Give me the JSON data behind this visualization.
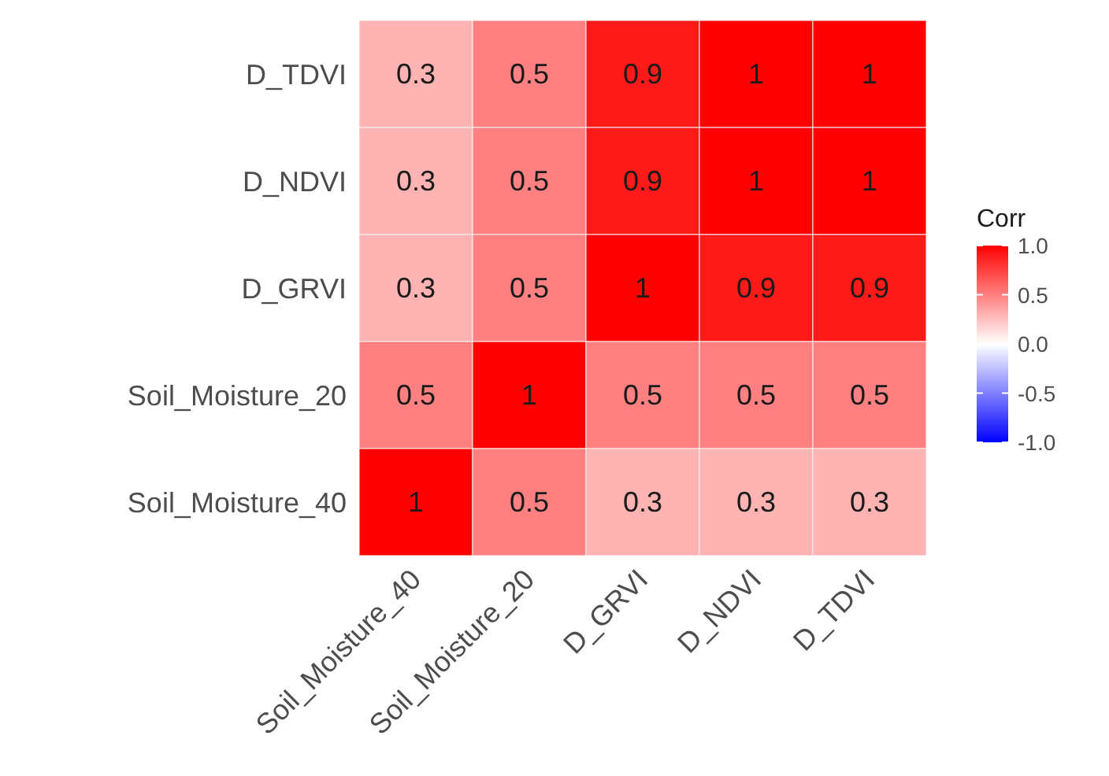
{
  "chart_data": {
    "type": "heatmap",
    "categories": [
      "Soil_Moisture_40",
      "Soil_Moisture_20",
      "D_GRVI",
      "D_NDVI",
      "D_TDVI"
    ],
    "y_categories": [
      "D_TDVI",
      "D_NDVI",
      "D_GRVI",
      "Soil_Moisture_20",
      "Soil_Moisture_40"
    ],
    "cells": [
      [
        0.3,
        0.5,
        0.9,
        1,
        1
      ],
      [
        0.3,
        0.5,
        0.9,
        1,
        1
      ],
      [
        0.3,
        0.5,
        1,
        0.9,
        0.9
      ],
      [
        0.5,
        1,
        0.5,
        0.5,
        0.5
      ],
      [
        1,
        0.5,
        0.3,
        0.3,
        0.3
      ]
    ],
    "data_labels": true,
    "clabel": "Corr",
    "clim": [
      -1,
      1
    ],
    "cticks": [
      {
        "value": -1,
        "label": "-1.0"
      },
      {
        "value": -0.5,
        "label": "-0.5"
      },
      {
        "value": 0,
        "label": "0.0"
      },
      {
        "value": 0.5,
        "label": "0.5"
      },
      {
        "value": 1,
        "label": "1.0"
      }
    ],
    "colors": [
      "#0000ff",
      "#ffffff",
      "#ff0000"
    ]
  }
}
